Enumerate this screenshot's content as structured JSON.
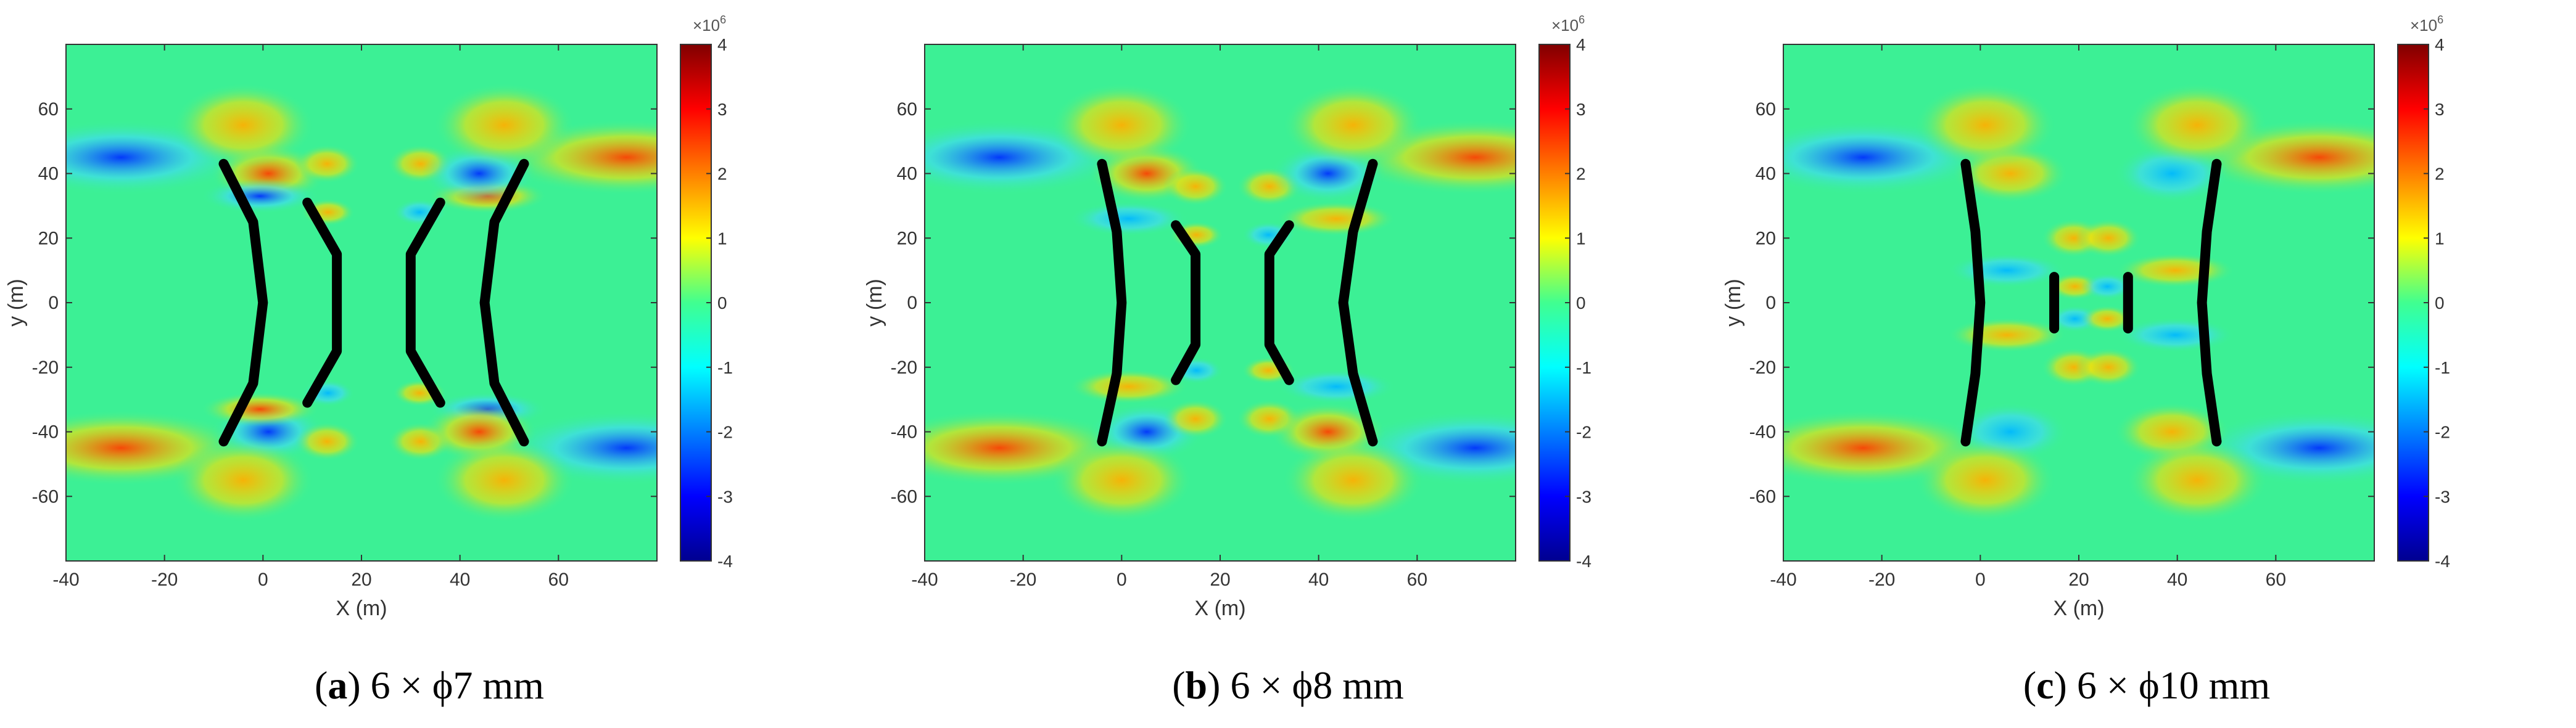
{
  "chart_data": [
    {
      "type": "heatmap",
      "panel_label": "a",
      "caption": "6 × ϕ7 mm",
      "xlabel": "X (m)",
      "ylabel": "y (m)",
      "xlim": [
        -40,
        80
      ],
      "ylim": [
        -80,
        80
      ],
      "xticks": [
        -40,
        -20,
        0,
        20,
        40,
        60
      ],
      "yticks": [
        -60,
        -40,
        -20,
        0,
        20,
        40,
        60
      ],
      "colorbar": {
        "exponent": "×10^6",
        "range": [
          -4,
          4
        ],
        "ticks": [
          4,
          3,
          2,
          1,
          0,
          -1,
          -2,
          -3,
          -4
        ],
        "colormap": "jet"
      },
      "cracks": [
        [
          [
            -8,
            43
          ],
          [
            -2,
            25
          ],
          [
            0,
            0
          ],
          [
            -2,
            -25
          ],
          [
            -8,
            -43
          ]
        ],
        [
          [
            9,
            31
          ],
          [
            15,
            15
          ],
          [
            15,
            -15
          ],
          [
            9,
            -31
          ]
        ],
        [
          [
            36,
            31
          ],
          [
            30,
            15
          ],
          [
            30,
            -15
          ],
          [
            36,
            -31
          ]
        ],
        [
          [
            53,
            43
          ],
          [
            47,
            25
          ],
          [
            45,
            0
          ],
          [
            47,
            -25
          ],
          [
            53,
            -43
          ]
        ]
      ]
    },
    {
      "type": "heatmap",
      "panel_label": "b",
      "caption": "6 × ϕ8 mm",
      "xlabel": "X (m)",
      "ylabel": "y (m)",
      "xlim": [
        -40,
        80
      ],
      "ylim": [
        -80,
        80
      ],
      "xticks": [
        -40,
        -20,
        0,
        20,
        40,
        60
      ],
      "yticks": [
        -60,
        -40,
        -20,
        0,
        20,
        40,
        60
      ],
      "colorbar": {
        "exponent": "×10^6",
        "range": [
          -4,
          4
        ],
        "ticks": [
          4,
          3,
          2,
          1,
          0,
          -1,
          -2,
          -3,
          -4
        ],
        "colormap": "jet"
      },
      "cracks": [
        [
          [
            -4,
            43
          ],
          [
            -1,
            22
          ],
          [
            0,
            0
          ],
          [
            -1,
            -22
          ],
          [
            -4,
            -43
          ]
        ],
        [
          [
            11,
            24
          ],
          [
            15,
            15
          ],
          [
            15,
            -13
          ],
          [
            11,
            -24
          ]
        ],
        [
          [
            34,
            24
          ],
          [
            30,
            15
          ],
          [
            30,
            -13
          ],
          [
            34,
            -24
          ]
        ],
        [
          [
            51,
            43
          ],
          [
            47,
            22
          ],
          [
            45,
            0
          ],
          [
            47,
            -22
          ],
          [
            51,
            -43
          ]
        ]
      ]
    },
    {
      "type": "heatmap",
      "panel_label": "c",
      "caption": "6 × ϕ10 mm",
      "xlabel": "X (m)",
      "ylabel": "y (m)",
      "xlim": [
        -40,
        80
      ],
      "ylim": [
        -80,
        80
      ],
      "xticks": [
        -40,
        -20,
        0,
        20,
        40,
        60
      ],
      "yticks": [
        -60,
        -40,
        -20,
        0,
        20,
        40,
        60
      ],
      "colorbar": {
        "exponent": "×10^6",
        "range": [
          -4,
          4
        ],
        "ticks": [
          4,
          3,
          2,
          1,
          0,
          -1,
          -2,
          -3,
          -4
        ],
        "colormap": "jet"
      },
      "cracks": [
        [
          [
            -3,
            43
          ],
          [
            -1,
            22
          ],
          [
            0,
            0
          ],
          [
            -1,
            -22
          ],
          [
            -3,
            -43
          ]
        ],
        [
          [
            15,
            8
          ],
          [
            15,
            -8
          ]
        ],
        [
          [
            30,
            8
          ],
          [
            30,
            -8
          ]
        ],
        [
          [
            48,
            43
          ],
          [
            46,
            22
          ],
          [
            45,
            0
          ],
          [
            46,
            -22
          ],
          [
            48,
            -43
          ]
        ]
      ]
    }
  ]
}
